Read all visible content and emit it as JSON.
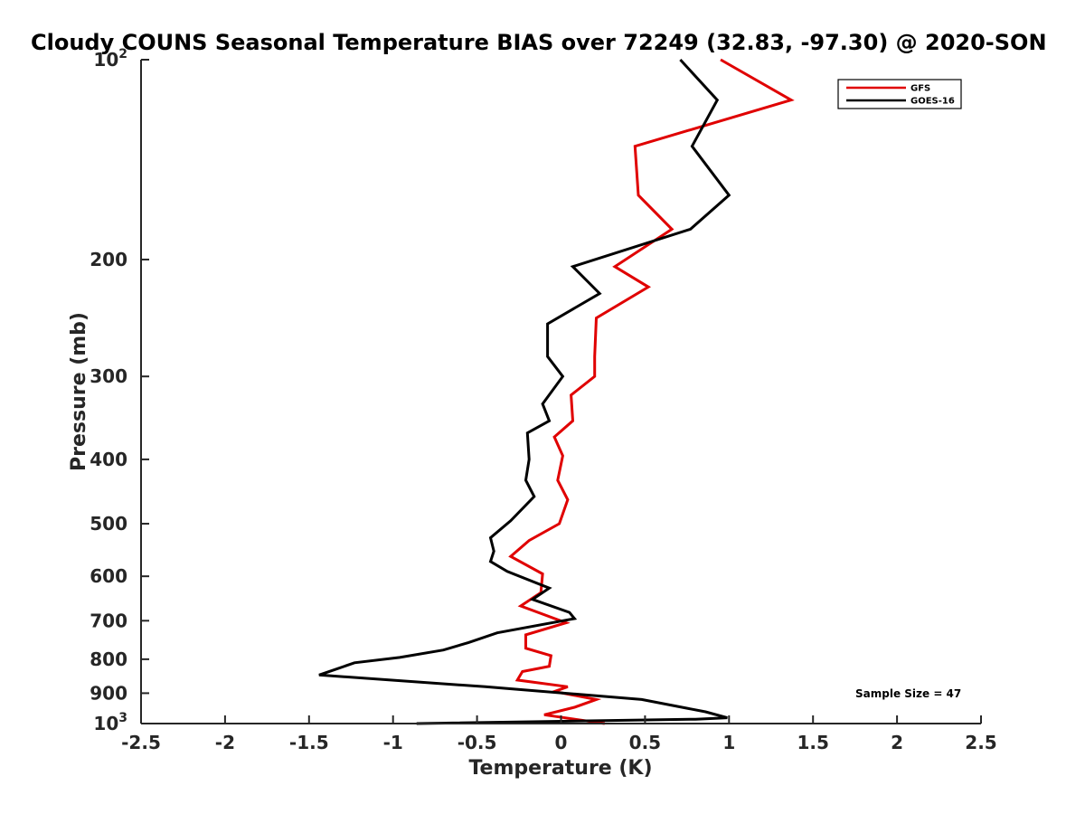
{
  "chart_data": {
    "type": "line",
    "title": "Cloudy COUNS Seasonal Temperature BIAS over 72249 (32.83, -97.30) @ 2020-SON",
    "xlabel": "Temperature (K)",
    "ylabel": "Pressure (mb)",
    "xlim": [
      -2.5,
      2.5
    ],
    "ylim": [
      1000,
      100
    ],
    "yscale": "log",
    "xticks": [
      {
        "value": -2.5,
        "label": "-2.5"
      },
      {
        "value": -2,
        "label": "-2"
      },
      {
        "value": -1.5,
        "label": "-1.5"
      },
      {
        "value": -1,
        "label": "-1"
      },
      {
        "value": -0.5,
        "label": "-0.5"
      },
      {
        "value": 0,
        "label": "0"
      },
      {
        "value": 0.5,
        "label": "0.5"
      },
      {
        "value": 1,
        "label": "1"
      },
      {
        "value": 1.5,
        "label": "1.5"
      },
      {
        "value": 2,
        "label": "2"
      },
      {
        "value": 2.5,
        "label": "2.5"
      }
    ],
    "yticks": [
      {
        "value": 100,
        "label": "10",
        "sup": "2"
      },
      {
        "value": 200,
        "label": "200"
      },
      {
        "value": 300,
        "label": "300"
      },
      {
        "value": 400,
        "label": "400"
      },
      {
        "value": 500,
        "label": "500"
      },
      {
        "value": 600,
        "label": "600"
      },
      {
        "value": 700,
        "label": "700"
      },
      {
        "value": 800,
        "label": "800"
      },
      {
        "value": 900,
        "label": "900"
      },
      {
        "value": 1000,
        "label": "10",
        "sup": "3"
      }
    ],
    "series": [
      {
        "name": "GFS",
        "color": "#e00000",
        "points": [
          [
            0.95,
            100
          ],
          [
            1.37,
            115
          ],
          [
            0.44,
            135
          ],
          [
            0.46,
            160
          ],
          [
            0.66,
            180
          ],
          [
            0.32,
            205
          ],
          [
            0.52,
            220
          ],
          [
            0.21,
            245
          ],
          [
            0.2,
            280
          ],
          [
            0.2,
            300
          ],
          [
            0.06,
            320
          ],
          [
            0.07,
            350
          ],
          [
            -0.04,
            370
          ],
          [
            0.01,
            395
          ],
          [
            -0.02,
            430
          ],
          [
            0.04,
            460
          ],
          [
            -0.01,
            500
          ],
          [
            -0.19,
            530
          ],
          [
            -0.3,
            560
          ],
          [
            -0.11,
            595
          ],
          [
            -0.12,
            635
          ],
          [
            -0.24,
            665
          ],
          [
            0.03,
            705
          ],
          [
            -0.21,
            735
          ],
          [
            -0.21,
            770
          ],
          [
            -0.06,
            790
          ],
          [
            -0.07,
            820
          ],
          [
            -0.23,
            835
          ],
          [
            -0.26,
            860
          ],
          [
            0.04,
            880
          ],
          [
            -0.04,
            895
          ],
          [
            0.21,
            920
          ],
          [
            0.08,
            945
          ],
          [
            -0.1,
            970
          ],
          [
            0.26,
            1000
          ]
        ]
      },
      {
        "name": "GOES-16",
        "color": "#000000",
        "points": [
          [
            0.71,
            100
          ],
          [
            0.93,
            115
          ],
          [
            0.78,
            135
          ],
          [
            1.0,
            160
          ],
          [
            0.77,
            180
          ],
          [
            0.07,
            205
          ],
          [
            0.23,
            225
          ],
          [
            -0.08,
            250
          ],
          [
            -0.08,
            280
          ],
          [
            0.01,
            300
          ],
          [
            -0.11,
            330
          ],
          [
            -0.07,
            350
          ],
          [
            -0.2,
            365
          ],
          [
            -0.19,
            400
          ],
          [
            -0.21,
            430
          ],
          [
            -0.16,
            455
          ],
          [
            -0.3,
            495
          ],
          [
            -0.42,
            525
          ],
          [
            -0.4,
            550
          ],
          [
            -0.42,
            570
          ],
          [
            -0.32,
            590
          ],
          [
            -0.07,
            625
          ],
          [
            -0.17,
            650
          ],
          [
            0.05,
            680
          ],
          [
            0.08,
            695
          ],
          [
            -0.38,
            730
          ],
          [
            -0.55,
            755
          ],
          [
            -0.7,
            775
          ],
          [
            -0.96,
            795
          ],
          [
            -1.23,
            810
          ],
          [
            -1.35,
            830
          ],
          [
            -1.44,
            845
          ],
          [
            -0.45,
            880
          ],
          [
            0.48,
            920
          ],
          [
            0.86,
            960
          ],
          [
            0.99,
            980
          ],
          [
            0.8,
            985
          ],
          [
            -0.86,
            1000
          ]
        ]
      }
    ],
    "legend": {
      "position": "top-right",
      "entries": [
        "GFS",
        "GOES-16"
      ]
    },
    "annotation": "Sample Size = 47"
  }
}
